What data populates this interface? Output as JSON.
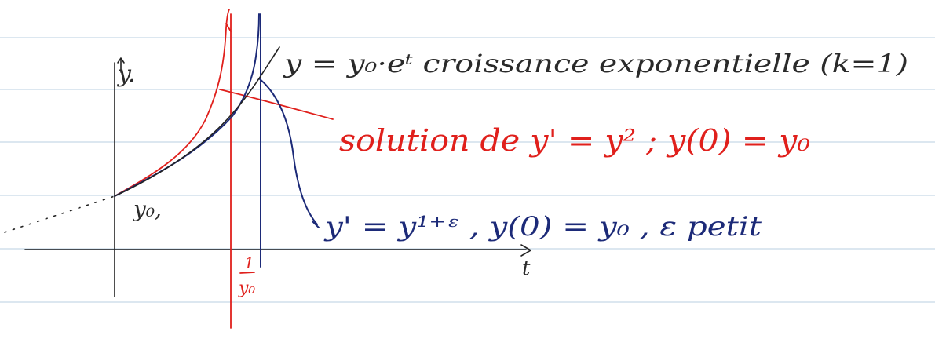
{
  "colors": {
    "rule_line": "#b9cfe0",
    "black_ink": "#222222",
    "red_ink": "#e0201c",
    "blue_ink": "#1c2a78"
  },
  "axes": {
    "y_label": "y.",
    "t_label": "t",
    "y0_label": "y₀,",
    "asymptote_numerator": "1",
    "asymptote_denominator": "y₀"
  },
  "annotations": {
    "exponential": "y = y₀·eᵗ  croissance exponentielle  (k=1)",
    "red_solution": "solution de y' = y² ; y(0) = y₀",
    "blue_solution": "y' = y¹⁺ᵋ , y(0) = y₀ , ε petit"
  }
}
